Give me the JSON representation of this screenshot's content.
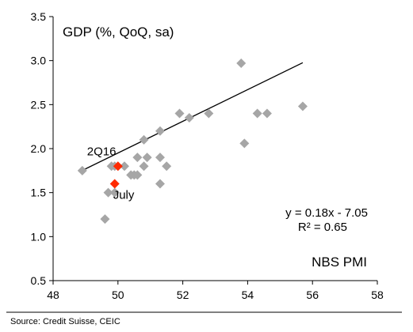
{
  "chart_data": {
    "type": "scatter",
    "title": "GDP (%, QoQ, sa)",
    "xlabel": "NBS PMI",
    "ylabel": "",
    "xlim": [
      48,
      58
    ],
    "ylim": [
      0.5,
      3.5
    ],
    "xticks": [
      "48",
      "50",
      "52",
      "54",
      "56",
      "58"
    ],
    "yticks": [
      "0.5",
      "1.0",
      "1.5",
      "2.0",
      "2.5",
      "3.0",
      "3.5"
    ],
    "grid": false,
    "series": [
      {
        "color": "#a6a6a6",
        "marker": "diamond",
        "points": [
          {
            "x": 48.9,
            "y": 1.75
          },
          {
            "x": 49.6,
            "y": 1.2
          },
          {
            "x": 49.7,
            "y": 1.5
          },
          {
            "x": 49.8,
            "y": 1.8
          },
          {
            "x": 49.9,
            "y": 1.5
          },
          {
            "x": 49.9,
            "y": 1.8
          },
          {
            "x": 50.2,
            "y": 1.8
          },
          {
            "x": 50.4,
            "y": 1.7
          },
          {
            "x": 50.5,
            "y": 1.7
          },
          {
            "x": 50.6,
            "y": 1.7
          },
          {
            "x": 50.6,
            "y": 1.9
          },
          {
            "x": 50.8,
            "y": 1.8
          },
          {
            "x": 50.8,
            "y": 2.1
          },
          {
            "x": 50.9,
            "y": 1.9
          },
          {
            "x": 51.3,
            "y": 1.6
          },
          {
            "x": 51.3,
            "y": 1.9
          },
          {
            "x": 51.3,
            "y": 2.2
          },
          {
            "x": 51.5,
            "y": 1.8
          },
          {
            "x": 51.9,
            "y": 2.4
          },
          {
            "x": 52.2,
            "y": 2.35
          },
          {
            "x": 52.8,
            "y": 2.4
          },
          {
            "x": 53.8,
            "y": 2.97
          },
          {
            "x": 53.9,
            "y": 2.06
          },
          {
            "x": 54.3,
            "y": 2.4
          },
          {
            "x": 54.6,
            "y": 2.4
          },
          {
            "x": 55.7,
            "y": 2.48
          }
        ]
      },
      {
        "color": "#ff2a00",
        "marker": "diamond",
        "points": [
          {
            "x": 50.0,
            "y": 1.8,
            "label": "2Q16"
          },
          {
            "x": 49.9,
            "y": 1.6,
            "label": "July"
          }
        ]
      }
    ],
    "trendline": {
      "slope": 0.18,
      "intercept": -7.05,
      "x_range": [
        48.9,
        55.7
      ],
      "color": "#000000"
    },
    "annotations": {
      "equation": "y = 0.18x - 7.05",
      "r2": "R² = 0.65"
    },
    "source": "Source: Credit Suisse, CEIC"
  }
}
